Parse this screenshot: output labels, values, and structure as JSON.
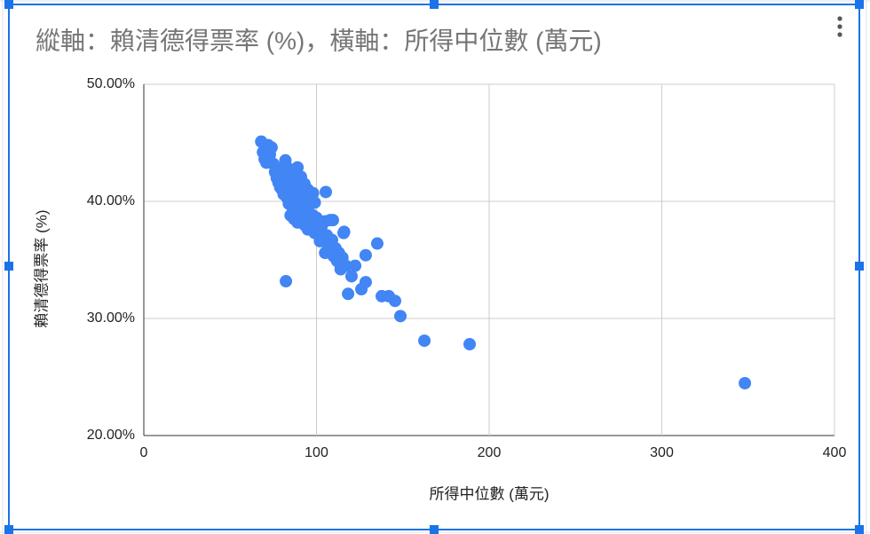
{
  "chart_data": {
    "type": "scatter",
    "title": "縱軸：賴清德得票率 (%)，橫軸：所得中位數 (萬元)",
    "x_label": "所得中位數 (萬元)",
    "y_label": "賴清德得票率 (%)",
    "color": "#4285f4",
    "grid": true,
    "xlim": [
      0,
      400
    ],
    "xticks": [
      0,
      100,
      200,
      300,
      400
    ],
    "ylim": [
      20,
      50
    ],
    "yticks": [
      {
        "value": 20,
        "label": "20.00%"
      },
      {
        "value": 30,
        "label": "30.00%"
      },
      {
        "value": 40,
        "label": "40.00%"
      },
      {
        "value": 50,
        "label": "50.00%"
      }
    ],
    "x": [
      68,
      69,
      70,
      71,
      72,
      73,
      74,
      75,
      76,
      77,
      78,
      78,
      79,
      80,
      80,
      81,
      82,
      82,
      83,
      83,
      84,
      84,
      85,
      85,
      85,
      86,
      86,
      87,
      87,
      87,
      88,
      88,
      89,
      89,
      89,
      90,
      90,
      91,
      91,
      92,
      92,
      93,
      93,
      94,
      94,
      95,
      95,
      96,
      96,
      97,
      97,
      98,
      98,
      99,
      99,
      100,
      101,
      102,
      102,
      103,
      104,
      105,
      105,
      106,
      107,
      108,
      108,
      109,
      110,
      111,
      112,
      113,
      114,
      115,
      116,
      117,
      82.3,
      348.1,
      188.7,
      162.5,
      148.6,
      145.5,
      141.9,
      137.8,
      126,
      128.5,
      118.3,
      120.3,
      122.4,
      128.5,
      135.2,
      105.4,
      115.7,
      109.5
    ],
    "values": [
      45.1,
      44.2,
      43.6,
      43.3,
      44.8,
      44.0,
      44.6,
      43.2,
      42.5,
      42.0,
      41.6,
      42.8,
      41.2,
      42.3,
      41.0,
      40.6,
      43.5,
      41.8,
      42.9,
      40.3,
      41.5,
      39.8,
      42.2,
      40.9,
      38.8,
      41.1,
      39.5,
      42.6,
      40.0,
      38.5,
      41.4,
      39.2,
      42.9,
      40.6,
      38.2,
      41.9,
      39.9,
      42.1,
      38.7,
      40.8,
      39.4,
      41.5,
      38.0,
      40.2,
      38.9,
      41.0,
      37.6,
      39.7,
      38.3,
      40.3,
      37.9,
      38.8,
      40.7,
      37.3,
      39.9,
      38.6,
      37.7,
      38.3,
      36.6,
      37.9,
      36.9,
      38.3,
      35.6,
      37.1,
      36.1,
      38.4,
      35.8,
      36.7,
      35.3,
      36.0,
      34.9,
      35.6,
      34.2,
      35.2,
      37.4,
      34.5,
      33.18,
      24.47,
      27.8,
      28.1,
      30.2,
      31.5,
      31.9,
      31.9,
      32.5,
      33.1,
      32.1,
      33.6,
      34.5,
      35.4,
      36.4,
      40.8,
      37.3,
      38.4
    ]
  }
}
